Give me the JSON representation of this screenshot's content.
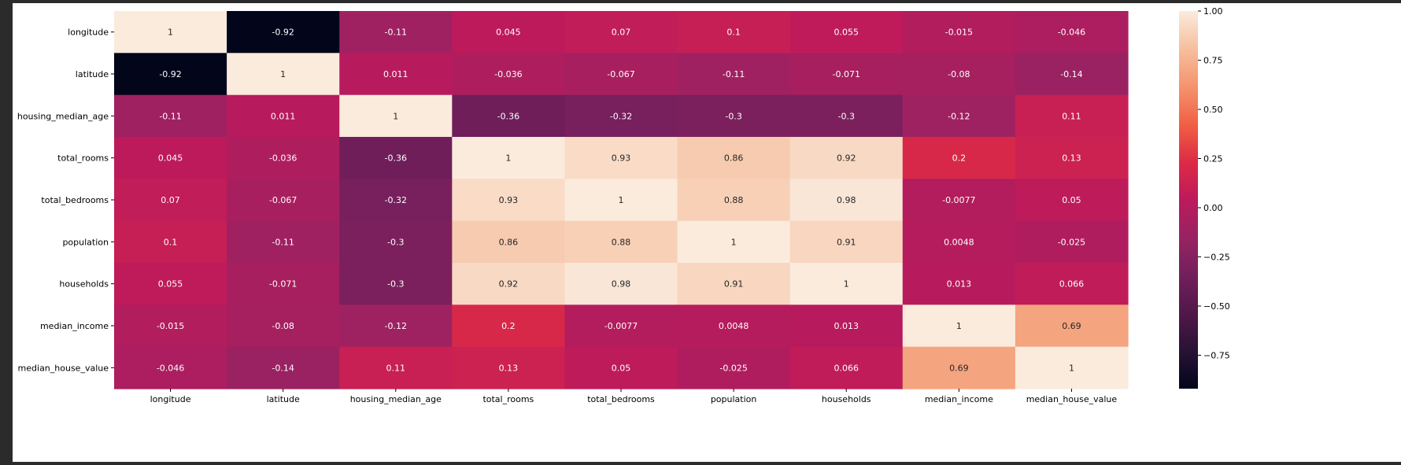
{
  "chart_data": {
    "type": "heatmap",
    "title": "",
    "xlabel": "",
    "ylabel": "",
    "labels": [
      "longitude",
      "latitude",
      "housing_median_age",
      "total_rooms",
      "total_bedrooms",
      "population",
      "households",
      "median_income",
      "median_house_value"
    ],
    "matrix": [
      [
        1,
        -0.92,
        -0.11,
        0.045,
        0.07,
        0.1,
        0.055,
        -0.015,
        -0.046
      ],
      [
        -0.92,
        1,
        0.011,
        -0.036,
        -0.067,
        -0.11,
        -0.071,
        -0.08,
        -0.14
      ],
      [
        -0.11,
        0.011,
        1,
        -0.36,
        -0.32,
        -0.3,
        -0.3,
        -0.12,
        0.11
      ],
      [
        0.045,
        -0.036,
        -0.36,
        1,
        0.93,
        0.86,
        0.92,
        0.2,
        0.13
      ],
      [
        0.07,
        -0.067,
        -0.32,
        0.93,
        1,
        0.88,
        0.98,
        -0.0077,
        0.05
      ],
      [
        0.1,
        -0.11,
        -0.3,
        0.86,
        0.88,
        1,
        0.91,
        0.0048,
        -0.025
      ],
      [
        0.055,
        -0.071,
        -0.3,
        0.92,
        0.98,
        0.91,
        1,
        0.013,
        0.066
      ],
      [
        -0.015,
        -0.08,
        -0.12,
        0.2,
        -0.0077,
        0.0048,
        0.013,
        1,
        0.69
      ],
      [
        -0.046,
        -0.14,
        0.11,
        0.13,
        0.05,
        -0.025,
        0.066,
        0.69,
        1
      ]
    ],
    "colorbar": {
      "min": -0.92,
      "max": 1.0,
      "ticks": [
        1.0,
        0.75,
        0.5,
        0.25,
        0.0,
        -0.25,
        -0.5,
        -0.75
      ],
      "tick_labels": [
        "1.00",
        "0.75",
        "0.50",
        "0.25",
        "0.00",
        "−0.25",
        "−0.50",
        "−0.75"
      ],
      "colormap": "rocket"
    }
  }
}
